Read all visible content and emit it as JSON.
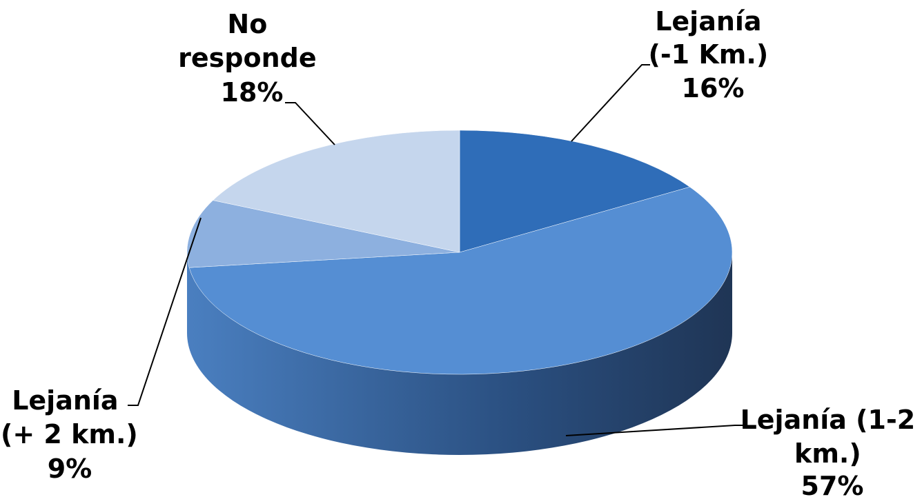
{
  "chart_data": {
    "type": "pie",
    "title": "",
    "slices": [
      {
        "label": "Lejanía (-1 Km.)",
        "value": 16,
        "label_lines": [
          "Lejanía",
          "(-1 Km.)",
          "16%"
        ],
        "color": "#2f6db8"
      },
      {
        "label": "Lejanía (1-2 km.)",
        "value": 57,
        "label_lines": [
          "Lejanía (1-2",
          "km.)",
          "57%"
        ],
        "color": "#558ed3"
      },
      {
        "label": "Lejanía (+ 2 km.)",
        "value": 9,
        "label_lines": [
          "Lejanía",
          "(+ 2 km.)",
          "9%"
        ],
        "color": "#8db0df"
      },
      {
        "label": "No responde",
        "value": 18,
        "label_lines": [
          "No",
          "responde",
          "18%"
        ],
        "color": "#c5d6ed"
      }
    ],
    "style": "3d-pie",
    "side_colors": [
      "#4a7fc0",
      "#2a4f80",
      "#1f3555"
    ]
  }
}
